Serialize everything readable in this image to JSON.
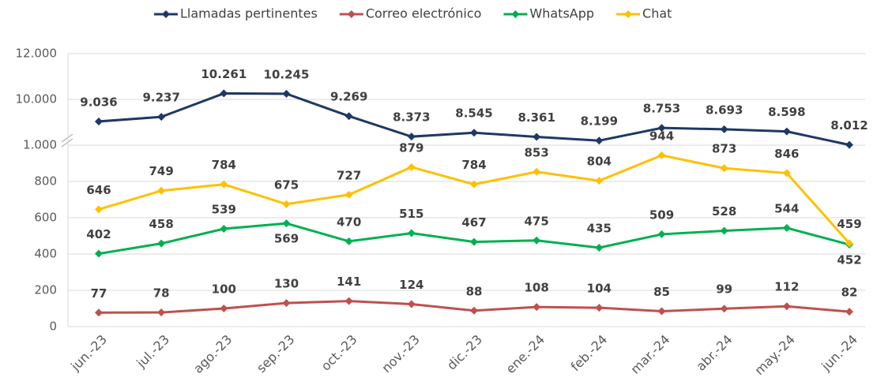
{
  "chart_data": {
    "type": "line",
    "categories": [
      "jun.-23",
      "jul.-23",
      "ago.-23",
      "sep.-23",
      "oct.-23",
      "nov.-23",
      "dic.-23",
      "ene.-24",
      "feb.-24",
      "mar.-24",
      "abr.-24",
      "may.-24",
      "jun.-24"
    ],
    "series": [
      {
        "name": "Llamadas pertinentes",
        "color": "#1f3864",
        "values": [
          9036,
          9237,
          10261,
          10245,
          9269,
          8373,
          8545,
          8361,
          8199,
          8753,
          8693,
          8598,
          8012
        ],
        "value_labels": [
          "9.036",
          "9.237",
          "10.261",
          "10.245",
          "9.269",
          "8.373",
          "8.545",
          "8.361",
          "8.199",
          "8.753",
          "8.693",
          "8.598",
          "8.012"
        ]
      },
      {
        "name": "Correo electrónico",
        "color": "#c0504d",
        "values": [
          77,
          78,
          100,
          130,
          141,
          124,
          88,
          108,
          104,
          85,
          99,
          112,
          82
        ]
      },
      {
        "name": "WhatsApp",
        "color": "#00b050",
        "values": [
          402,
          458,
          539,
          569,
          470,
          515,
          467,
          475,
          435,
          509,
          528,
          544,
          452
        ]
      },
      {
        "name": "Chat",
        "color": "#ffc000",
        "values": [
          646,
          749,
          784,
          675,
          727,
          879,
          784,
          853,
          804,
          944,
          873,
          846,
          459
        ]
      }
    ],
    "ylim": [
      0,
      12000
    ],
    "y_break": [
      1000,
      8000
    ],
    "yticks": [
      0,
      200,
      400,
      600,
      800,
      {
        "value": 1000,
        "label": "1.000"
      },
      {
        "value": 10000,
        "label": "10.000"
      },
      {
        "value": 12000,
        "label": "12.000"
      }
    ],
    "grid": true,
    "legend": "top"
  }
}
